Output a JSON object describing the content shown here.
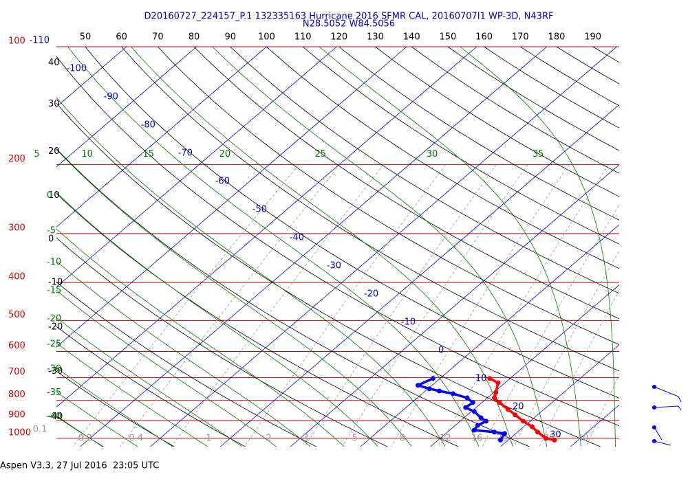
{
  "chart_data": {
    "type": "skew-t",
    "title": "D20160727_224157_P.1 132335163 Hurricane 2016 SFMR CAL, 20160707I1 WP-3D, N43RF",
    "subtitle": "N28.5052 W84.5056",
    "footer": "Aspen V3.3, 27 Jul 2016  23:05 UTC",
    "log_y": true,
    "ylim": [
      1050,
      100
    ],
    "yticks": [
      100,
      200,
      300,
      400,
      500,
      600,
      700,
      800,
      900,
      1000
    ],
    "isobar_color": "#d40000",
    "isotherms": {
      "color": "#0000d0",
      "values": [
        -110,
        -100,
        -90,
        -80,
        -70,
        -60,
        -50,
        -40,
        -30,
        -20,
        -10,
        0,
        10,
        20,
        30
      ]
    },
    "dry_adiabats": {
      "color": "#000000",
      "values": [
        -40,
        -30,
        -20,
        -10,
        0,
        10,
        20,
        30,
        40,
        50,
        60,
        70,
        80,
        90,
        100,
        110,
        120,
        130,
        140,
        150,
        160,
        170,
        180,
        190
      ]
    },
    "moist_adiabats": {
      "color": "#007800",
      "values": [
        -40,
        -35,
        -30,
        -25,
        -20,
        -15,
        -10,
        -5,
        0,
        5,
        10,
        15,
        20,
        25,
        30,
        35
      ]
    },
    "mixing_ratios": {
      "color": "#9a9a9a",
      "values": [
        0.1,
        0.2,
        0.4,
        1,
        2,
        3,
        5,
        8,
        12,
        16,
        20,
        30,
        40
      ]
    },
    "series": [
      {
        "color": "#ff0000",
        "pressure": [
          703,
          721,
          763,
          788,
          810,
          844,
          871,
          904,
          934,
          964,
          1000,
          1010
        ],
        "values": [
          7.1,
          9.0,
          10.3,
          11.0,
          12.5,
          14.9,
          16.8,
          19.0,
          21.2,
          22.9,
          25.1,
          26.6
        ]
      },
      {
        "color": "#0000ff",
        "pressure": [
          703,
          732,
          747,
          757,
          769,
          788,
          810,
          834,
          854,
          886,
          904,
          926,
          953,
          964,
          972,
          1010
        ],
        "values": [
          -1.0,
          -2.0,
          0.2,
          2.0,
          4.4,
          7.1,
          8.7,
          8.5,
          10.4,
          12.4,
          13.7,
          13.2,
          13.5,
          16.7,
          18.4,
          18.9
        ]
      }
    ]
  }
}
